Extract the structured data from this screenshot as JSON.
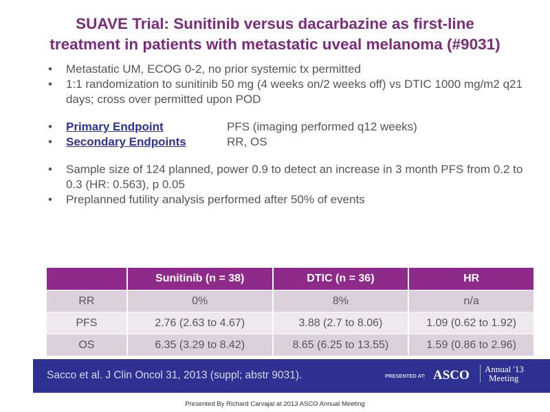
{
  "title": [
    "SUAVE Trial: Sunitinib versus dacarbazine as first-line",
    "treatment in patients with metastatic uveal melanoma (#9031)"
  ],
  "bullets1": [
    "Metastatic UM, ECOG 0-2, no prior systemic tx permitted",
    "1:1 randomization to sunitinib 50 mg (4 weeks on/2 weeks off) vs DTIC 1000 mg/m2 q21 days; cross over permitted upon POD"
  ],
  "endpoints": [
    {
      "label": "Primary Endpoint",
      "value": "PFS (imaging performed q12 weeks)"
    },
    {
      "label": "Secondary Endpoints",
      "value": "RR, OS"
    }
  ],
  "bullets2": [
    "Sample size of 124 planned, power 0.9 to detect an increase in 3 month PFS from 0.2 to 0.3 (HR: 0.563), p 0.05",
    "Preplanned futility analysis performed after 50% of events"
  ],
  "table": {
    "headers": [
      "",
      "Sunitinib (n = 38)",
      "DTIC (n = 36)",
      "HR"
    ],
    "rows": [
      [
        "RR",
        "0%",
        "8%",
        "n/a"
      ],
      [
        "PFS",
        "2.76 (2.63 to 4.67)",
        "3.88 (2.7 to 8.06)",
        "1.09 (0.62 to 1.92)"
      ],
      [
        "OS",
        "6.35 (3.29 to 8.42)",
        "8.65 (6.25 to 13.55)",
        "1.59 (0.86 to 2.96)"
      ]
    ]
  },
  "footer": {
    "citation": "Sacco et al. J Clin Oncol 31, 2013 (suppl; abstr 9031).",
    "presented_at": "PRESENTED AT:",
    "asco": "ASCO",
    "annual": "Annual '13",
    "meeting": "Meeting"
  },
  "bottom_caption": "Presented By Richard Carvajal at 2013 ASCO Annual Meeting"
}
